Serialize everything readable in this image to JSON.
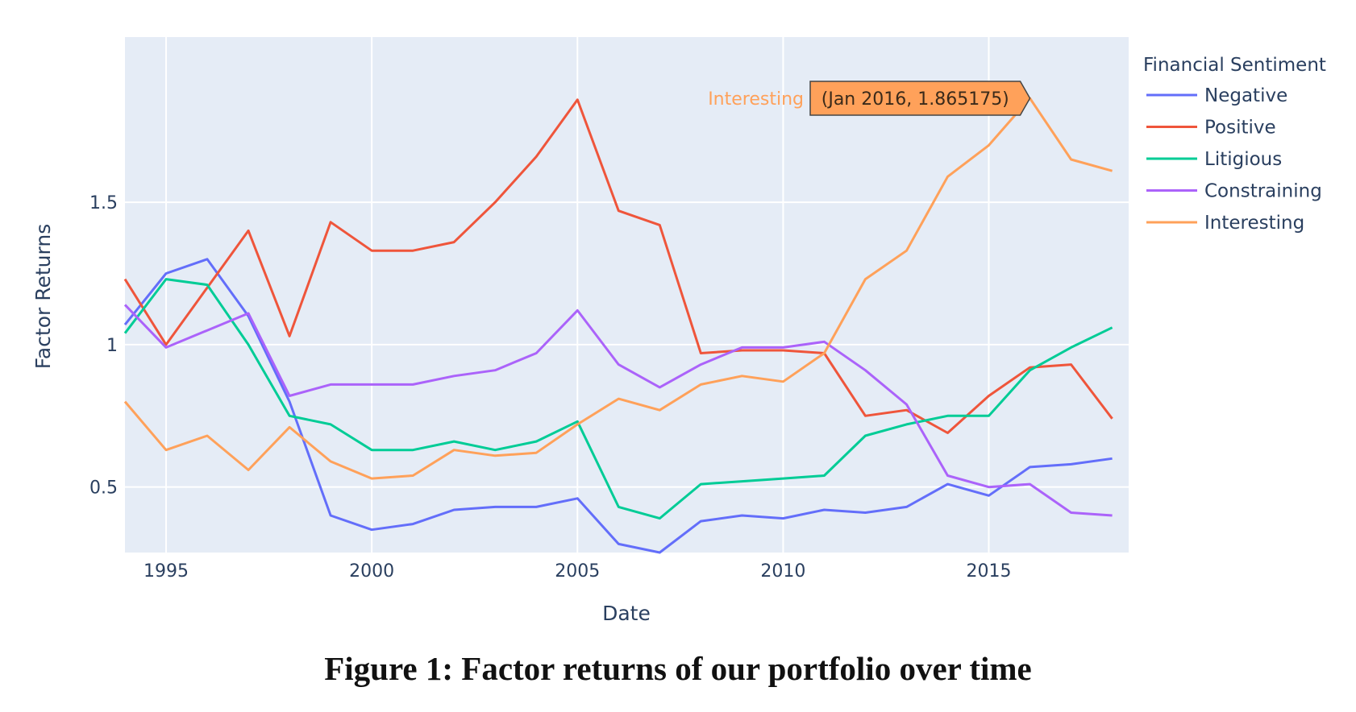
{
  "caption": "Figure 1: Factor returns of our portfolio over time",
  "chart_data": {
    "type": "line",
    "title": "",
    "xlabel": "Date",
    "ylabel": "Factor Returns",
    "x": [
      1994,
      1995,
      1996,
      1997,
      1998,
      1999,
      2000,
      2001,
      2002,
      2003,
      2004,
      2005,
      2006,
      2007,
      2008,
      2009,
      2010,
      2011,
      2012,
      2013,
      2014,
      2015,
      2016,
      2017,
      2018
    ],
    "xlim": [
      1994,
      2018.4
    ],
    "ylim": [
      0.27,
      2.08
    ],
    "xticks": [
      1995,
      2000,
      2005,
      2010,
      2015
    ],
    "xtick_labels": [
      "1995",
      "2000",
      "2005",
      "2010",
      "2015"
    ],
    "yticks": [
      0.5,
      1,
      1.5
    ],
    "ytick_labels": [
      "0.5",
      "1",
      "1.5"
    ],
    "grid": true,
    "legend": {
      "title": "Financial Sentiment",
      "position": "right"
    },
    "series": [
      {
        "name": "Negative",
        "color": "#636efa",
        "values": [
          1.07,
          1.25,
          1.3,
          1.1,
          0.8,
          0.4,
          0.35,
          0.37,
          0.42,
          0.43,
          0.43,
          0.46,
          0.3,
          0.27,
          0.38,
          0.4,
          0.39,
          0.42,
          0.41,
          0.43,
          0.51,
          0.47,
          0.57,
          0.58,
          0.6
        ]
      },
      {
        "name": "Positive",
        "color": "#ef553b",
        "values": [
          1.23,
          1.0,
          1.2,
          1.4,
          1.03,
          1.43,
          1.33,
          1.33,
          1.36,
          1.5,
          1.66,
          1.86,
          1.47,
          1.42,
          0.97,
          0.98,
          0.98,
          0.97,
          0.75,
          0.77,
          0.69,
          0.82,
          0.92,
          0.93,
          0.74
        ]
      },
      {
        "name": "Litigious",
        "color": "#00cc96",
        "values": [
          1.04,
          1.23,
          1.21,
          1.0,
          0.75,
          0.72,
          0.63,
          0.63,
          0.66,
          0.63,
          0.66,
          0.73,
          0.43,
          0.39,
          0.51,
          0.52,
          0.53,
          0.54,
          0.68,
          0.72,
          0.75,
          0.75,
          0.91,
          0.99,
          1.06
        ]
      },
      {
        "name": "Constraining",
        "color": "#ab63fa",
        "values": [
          1.14,
          0.99,
          1.05,
          1.11,
          0.82,
          0.86,
          0.86,
          0.86,
          0.89,
          0.91,
          0.97,
          1.12,
          0.93,
          0.85,
          0.93,
          0.99,
          0.99,
          1.01,
          0.91,
          0.79,
          0.54,
          0.5,
          0.51,
          0.41,
          0.4
        ]
      },
      {
        "name": "Interesting",
        "color": "#ffa15a",
        "values": [
          0.8,
          0.63,
          0.68,
          0.56,
          0.71,
          0.59,
          0.53,
          0.54,
          0.63,
          0.61,
          0.62,
          0.72,
          0.81,
          0.77,
          0.86,
          0.89,
          0.87,
          0.97,
          1.23,
          1.33,
          1.59,
          1.7,
          1.865175,
          1.65,
          1.61
        ]
      }
    ],
    "hover": {
      "series_label": "Interesting",
      "text": "(Jan 2016, 1.865175)",
      "x": 2016,
      "y": 1.865175,
      "color": "#ffa15a"
    }
  }
}
